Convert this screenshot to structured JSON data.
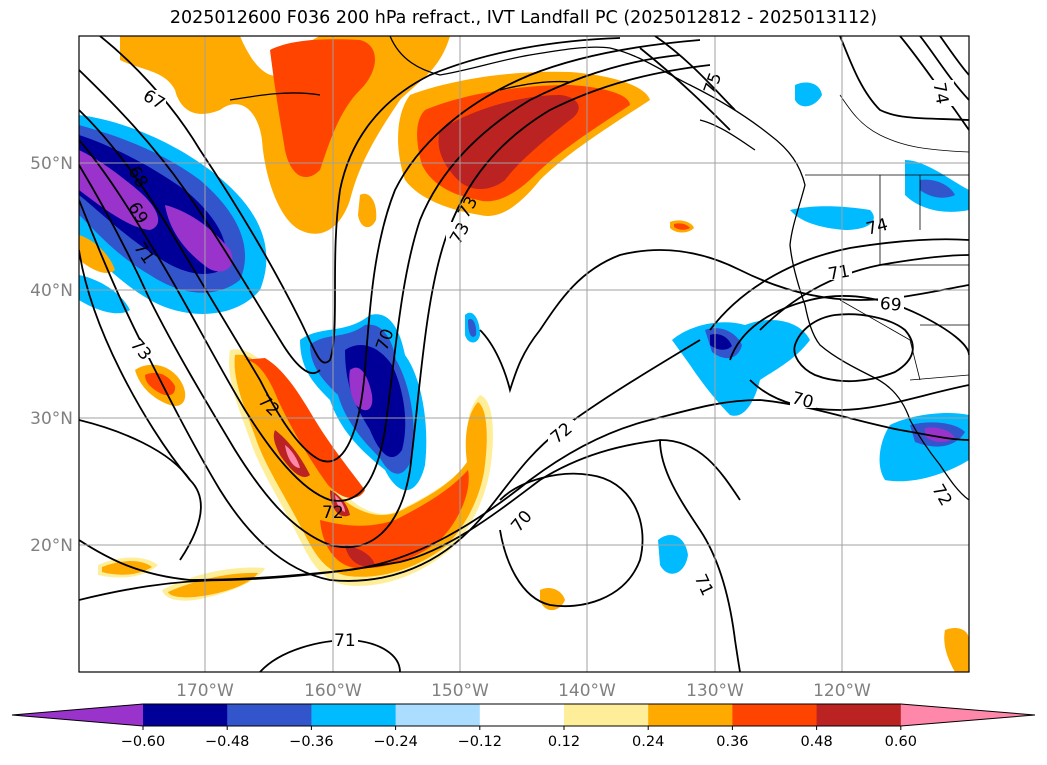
{
  "title": "2025012600 F036 200 hPa refract., IVT Landfall PC (2025012812 - 2025013112)",
  "map": {
    "lat_ticks": [
      "50°N",
      "40°N",
      "30°N",
      "20°N"
    ],
    "lon_ticks": [
      "170°W",
      "160°W",
      "150°W",
      "140°W",
      "130°W",
      "120°W"
    ],
    "contour_labels": [
      "67",
      "68",
      "69",
      "71",
      "73",
      "72",
      "72",
      "70",
      "73",
      "73",
      "75",
      "74",
      "74",
      "71",
      "69",
      "70",
      "72",
      "70",
      "71",
      "71",
      "72"
    ]
  },
  "colorbar": {
    "ticks": [
      "−0.60",
      "−0.48",
      "−0.36",
      "−0.24",
      "−0.12",
      "0.12",
      "0.24",
      "0.36",
      "0.48",
      "0.60"
    ],
    "colors": [
      "#9933cc",
      "#000099",
      "#3355cc",
      "#00bbff",
      "#aaddff",
      "#ffffff",
      "#ffee99",
      "#ffaa00",
      "#ff4400",
      "#bb2222",
      "#ff88aa"
    ]
  }
}
